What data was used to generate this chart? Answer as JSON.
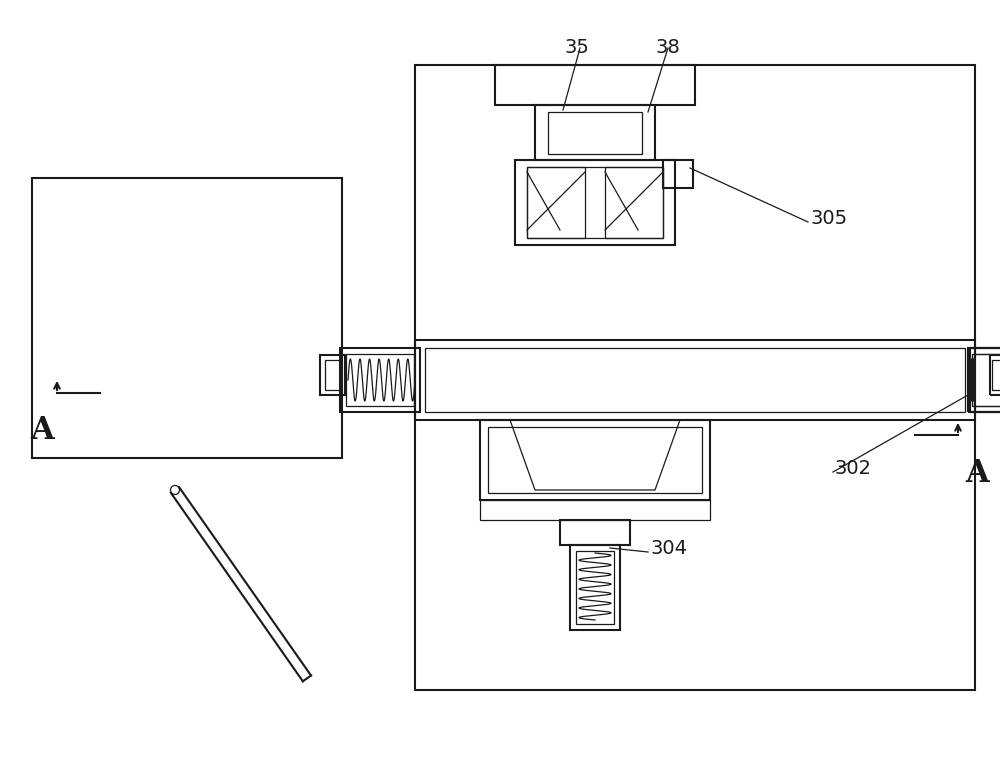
{
  "bg_color": "#ffffff",
  "line_color": "#1a1a1a",
  "lw": 1.5,
  "lw_thin": 0.9,
  "lw_thick": 2.0,
  "label_fontsize": 14,
  "A_fontsize": 22,
  "figsize": [
    10.0,
    7.65
  ],
  "dpi": 100
}
